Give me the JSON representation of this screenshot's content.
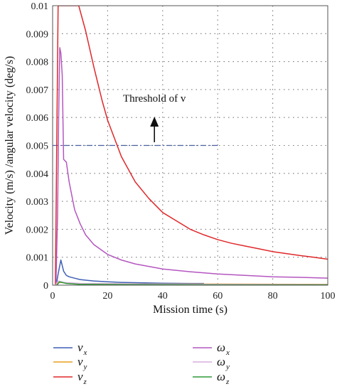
{
  "chart_data": {
    "type": "line",
    "xlabel": "Mission time (s)",
    "ylabel": "Velocity (m/s) /angular velocity (deg/s)",
    "xlim": [
      0,
      100
    ],
    "ylim": [
      0,
      0.01
    ],
    "x_ticks": [
      "0",
      "20",
      "40",
      "60",
      "80",
      "100"
    ],
    "y_ticks": [
      "0",
      "0.001",
      "0.002",
      "0.003",
      "0.004",
      "0.005",
      "0.006",
      "0.007",
      "0.008",
      "0.009",
      "0.01"
    ],
    "grid": true,
    "legend_position": "below",
    "annotation": {
      "text": "Threshold of v",
      "threshold_value": 0.005,
      "threshold_x_end": 60,
      "arrow_x": 37
    },
    "series": [
      {
        "name": "v",
        "subscript": "x",
        "color": "#3f5fb5",
        "points": [
          [
            1.3,
            0
          ],
          [
            2,
            0.0004
          ],
          [
            3,
            0.0009
          ],
          [
            4,
            0.0005
          ],
          [
            5,
            0.00035
          ],
          [
            6,
            0.0003
          ],
          [
            8,
            0.00025
          ],
          [
            10,
            0.0002
          ],
          [
            15,
            0.00015
          ],
          [
            20,
            0.00012
          ],
          [
            25,
            0.0001
          ],
          [
            30,
            9e-05
          ],
          [
            40,
            7e-05
          ],
          [
            50,
            6e-05
          ],
          [
            55,
            6e-05
          ]
        ]
      },
      {
        "name": "v",
        "subscript": "y",
        "color": "#e8a020",
        "points": [
          [
            1.5,
            0
          ],
          [
            2,
            0.0001
          ],
          [
            3,
            0.0001
          ],
          [
            5,
            8e-05
          ],
          [
            10,
            6e-05
          ],
          [
            20,
            5e-05
          ],
          [
            40,
            4e-05
          ],
          [
            60,
            4e-05
          ],
          [
            100,
            3e-05
          ]
        ]
      },
      {
        "name": "v",
        "subscript": "z",
        "color": "#e0282a",
        "points": [
          [
            1,
            0
          ],
          [
            1.3,
            0.003
          ],
          [
            1.6,
            0.006
          ],
          [
            2,
            0.01
          ],
          [
            9.5,
            0.01
          ],
          [
            12,
            0.0091
          ],
          [
            15,
            0.0078
          ],
          [
            18,
            0.0066
          ],
          [
            20,
            0.0059
          ],
          [
            25,
            0.0046
          ],
          [
            30,
            0.0037
          ],
          [
            35,
            0.0031
          ],
          [
            40,
            0.0026
          ],
          [
            45,
            0.0023
          ],
          [
            50,
            0.002
          ],
          [
            55,
            0.0018
          ],
          [
            60,
            0.00163
          ],
          [
            65,
            0.0015
          ],
          [
            70,
            0.0014
          ],
          [
            75,
            0.0013
          ],
          [
            80,
            0.0012
          ],
          [
            85,
            0.00113
          ],
          [
            90,
            0.00106
          ],
          [
            95,
            0.001
          ],
          [
            100,
            0.00093
          ]
        ]
      },
      {
        "name": "ω",
        "subscript": "x",
        "color": "#b456c0",
        "points": [
          [
            1.2,
            0
          ],
          [
            1.8,
            0.0025
          ],
          [
            2.2,
            0.006
          ],
          [
            2.6,
            0.0085
          ],
          [
            3,
            0.0083
          ],
          [
            3.5,
            0.0075
          ],
          [
            4,
            0.0045
          ],
          [
            5,
            0.0044
          ],
          [
            6,
            0.0037
          ],
          [
            7,
            0.0032
          ],
          [
            8,
            0.0027
          ],
          [
            10,
            0.0022
          ],
          [
            12,
            0.0018
          ],
          [
            15,
            0.00145
          ],
          [
            20,
            0.0011
          ],
          [
            25,
            0.0009
          ],
          [
            30,
            0.00076
          ],
          [
            40,
            0.00058
          ],
          [
            50,
            0.00048
          ],
          [
            60,
            0.0004
          ],
          [
            70,
            0.00035
          ],
          [
            80,
            0.0003
          ],
          [
            90,
            0.00028
          ],
          [
            100,
            0.00025
          ]
        ]
      },
      {
        "name": "ω",
        "subscript": "y",
        "color": "#d7aedd",
        "points": [
          [
            1,
            0
          ],
          [
            2,
            0.00015
          ],
          [
            4,
            0.0001
          ],
          [
            10,
            6e-05
          ],
          [
            30,
            4e-05
          ],
          [
            60,
            3e-05
          ],
          [
            100,
            2e-05
          ]
        ]
      },
      {
        "name": "ω",
        "subscript": "z",
        "color": "#2f9a3a",
        "points": [
          [
            1.6,
            0
          ],
          [
            2.5,
            0.00012
          ],
          [
            5,
            6e-05
          ],
          [
            10,
            3e-05
          ],
          [
            30,
            2e-05
          ],
          [
            60,
            1e-05
          ],
          [
            100,
            1e-05
          ]
        ]
      }
    ]
  }
}
